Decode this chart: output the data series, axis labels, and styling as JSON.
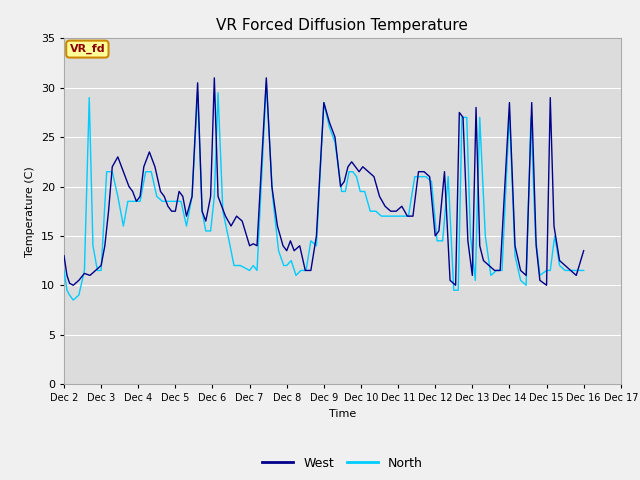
{
  "title": "VR Forced Diffusion Temperature",
  "xlabel": "Time",
  "ylabel": "Temperature (C)",
  "ylim": [
    0,
    35
  ],
  "yticks": [
    0,
    5,
    10,
    15,
    20,
    25,
    30,
    35
  ],
  "x_labels": [
    "Dec 2",
    "Dec 3",
    "Dec 4",
    "Dec 5",
    "Dec 6",
    "Dec 7",
    "Dec 8",
    "Dec 9",
    "Dec 10",
    "Dec 11",
    "Dec 12",
    "Dec 13",
    "Dec 14",
    "Dec 15",
    "Dec 16",
    "Dec 17"
  ],
  "west_color": "#00008B",
  "north_color": "#00CCFF",
  "plot_bg_light": "#DCDCDC",
  "band_bg": "#C8C8C8",
  "outer_bg": "#F0F0F0",
  "title_fontsize": 11,
  "axis_fontsize": 8,
  "tick_fontsize": 8,
  "legend_label_west": "West",
  "legend_label_north": "North",
  "annotation_text": "VR_fd",
  "annotation_bg": "#FFFF99",
  "annotation_border": "#CC8800",
  "annotation_text_color": "#8B0000",
  "west_data_t": [
    0.0,
    0.08,
    0.15,
    0.25,
    0.4,
    0.55,
    0.7,
    0.85,
    1.0,
    1.1,
    1.2,
    1.3,
    1.45,
    1.55,
    1.65,
    1.75,
    1.85,
    1.95,
    2.05,
    2.15,
    2.3,
    2.45,
    2.6,
    2.7,
    2.8,
    2.9,
    3.0,
    3.1,
    3.2,
    3.3,
    3.45,
    3.6,
    3.72,
    3.82,
    3.95,
    4.05,
    4.15,
    4.25,
    4.35,
    4.5,
    4.65,
    4.8,
    5.0,
    5.1,
    5.2,
    5.45,
    5.6,
    5.75,
    5.9,
    6.0,
    6.1,
    6.2,
    6.35,
    6.5,
    6.65,
    6.8,
    7.0,
    7.15,
    7.3,
    7.45,
    7.55,
    7.65,
    7.75,
    7.85,
    7.95,
    8.05,
    8.2,
    8.35,
    8.5,
    8.65,
    8.8,
    8.95,
    9.1,
    9.25,
    9.4,
    9.55,
    9.7,
    9.85,
    10.0,
    10.1,
    10.25,
    10.4,
    10.55,
    10.65,
    10.75,
    10.88,
    11.0,
    11.1,
    11.2,
    11.3,
    11.45,
    11.6,
    11.75,
    12.0,
    12.15,
    12.3,
    12.45,
    12.6,
    12.72,
    12.82,
    13.0,
    13.1,
    13.2,
    13.35,
    13.5,
    13.65,
    13.8,
    14.0
  ],
  "west_data_v": [
    13.0,
    11.0,
    10.2,
    10.0,
    10.5,
    11.2,
    11.0,
    11.5,
    12.0,
    14.0,
    17.5,
    22.0,
    23.0,
    22.0,
    21.0,
    20.0,
    19.5,
    18.5,
    19.0,
    22.0,
    23.5,
    22.0,
    19.5,
    19.0,
    18.0,
    17.5,
    17.5,
    19.5,
    19.0,
    17.0,
    19.0,
    30.5,
    17.5,
    16.5,
    19.0,
    31.0,
    19.0,
    18.0,
    17.0,
    16.0,
    17.0,
    16.5,
    14.0,
    14.2,
    14.0,
    31.0,
    20.0,
    16.0,
    14.0,
    13.5,
    14.5,
    13.5,
    14.0,
    11.5,
    11.5,
    15.0,
    28.5,
    26.5,
    25.0,
    20.0,
    20.5,
    22.0,
    22.5,
    22.0,
    21.5,
    22.0,
    21.5,
    21.0,
    19.0,
    18.0,
    17.5,
    17.5,
    18.0,
    17.0,
    17.0,
    21.5,
    21.5,
    21.0,
    15.0,
    15.5,
    21.5,
    10.5,
    10.0,
    27.5,
    27.0,
    14.5,
    11.0,
    28.0,
    14.0,
    12.5,
    12.0,
    11.5,
    11.5,
    28.5,
    14.0,
    11.5,
    11.0,
    28.5,
    14.0,
    10.5,
    10.0,
    29.0,
    16.0,
    12.5,
    12.0,
    11.5,
    11.0,
    13.5
  ],
  "north_data_t": [
    0.0,
    0.08,
    0.15,
    0.25,
    0.4,
    0.55,
    0.68,
    0.78,
    0.9,
    1.0,
    1.15,
    1.3,
    1.45,
    1.6,
    1.72,
    1.82,
    1.95,
    2.05,
    2.2,
    2.35,
    2.5,
    2.65,
    2.8,
    2.95,
    3.05,
    3.15,
    3.3,
    3.45,
    3.6,
    3.72,
    3.82,
    3.95,
    4.05,
    4.15,
    4.28,
    4.42,
    4.58,
    4.75,
    5.0,
    5.1,
    5.2,
    5.45,
    5.62,
    5.78,
    5.92,
    6.0,
    6.12,
    6.25,
    6.38,
    6.52,
    6.65,
    6.8,
    7.0,
    7.15,
    7.3,
    7.48,
    7.58,
    7.68,
    7.78,
    7.88,
    7.98,
    8.1,
    8.25,
    8.4,
    8.55,
    8.7,
    8.85,
    9.0,
    9.12,
    9.28,
    9.45,
    9.6,
    9.75,
    9.9,
    10.05,
    10.2,
    10.35,
    10.5,
    10.62,
    10.72,
    10.85,
    10.95,
    11.08,
    11.2,
    11.35,
    11.5,
    11.65,
    11.8,
    12.0,
    12.15,
    12.3,
    12.45,
    12.58,
    12.7,
    12.82,
    13.0,
    13.1,
    13.22,
    13.35,
    13.5,
    13.65,
    13.8,
    14.0
  ],
  "north_data_v": [
    11.5,
    9.5,
    9.0,
    8.5,
    9.0,
    11.5,
    29.0,
    14.0,
    11.5,
    11.5,
    21.5,
    21.5,
    19.0,
    16.0,
    18.5,
    18.5,
    18.5,
    18.5,
    21.5,
    21.5,
    19.0,
    18.5,
    18.5,
    18.5,
    18.5,
    18.5,
    16.0,
    19.0,
    29.5,
    17.5,
    15.5,
    15.5,
    19.0,
    29.5,
    17.5,
    15.0,
    12.0,
    12.0,
    11.5,
    12.0,
    11.5,
    30.5,
    19.0,
    13.5,
    12.0,
    12.0,
    12.5,
    11.0,
    11.5,
    11.5,
    14.5,
    14.0,
    28.5,
    26.0,
    24.5,
    19.5,
    19.5,
    21.5,
    21.5,
    21.0,
    19.5,
    19.5,
    17.5,
    17.5,
    17.0,
    17.0,
    17.0,
    17.0,
    17.0,
    17.0,
    21.0,
    21.0,
    21.0,
    20.5,
    14.5,
    14.5,
    21.0,
    9.5,
    9.5,
    27.0,
    27.0,
    15.0,
    10.5,
    27.0,
    15.0,
    11.0,
    11.5,
    11.5,
    27.5,
    13.0,
    10.5,
    10.0,
    27.0,
    15.0,
    11.0,
    11.5,
    11.5,
    15.0,
    12.0,
    11.5,
    11.5,
    11.5,
    11.5
  ]
}
